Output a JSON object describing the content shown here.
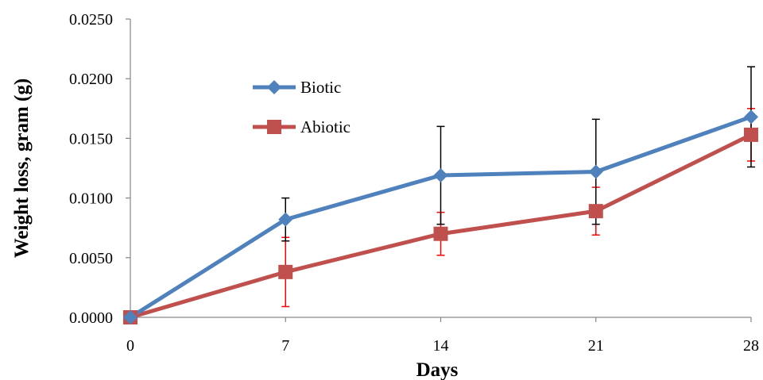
{
  "chart_data": {
    "type": "line",
    "title": "",
    "xlabel": "Days",
    "ylabel": "Weight loss, gram (g)",
    "x": [
      0,
      7,
      14,
      21,
      28
    ],
    "x_tick_labels": [
      "0",
      "7",
      "14",
      "21",
      "28"
    ],
    "ylim": [
      0,
      0.025
    ],
    "y_ticks": [
      0,
      0.005,
      0.01,
      0.015,
      0.02,
      0.025
    ],
    "y_tick_labels": [
      "0.0000",
      "0.0050",
      "0.0100",
      "0.0150",
      "0.0200",
      "0.0250"
    ],
    "grid": false,
    "legend_position": "upper-left-inside",
    "series": [
      {
        "name": "Biotic",
        "color": "#4F81BD",
        "marker": "diamond",
        "values": [
          0.0,
          0.0082,
          0.0119,
          0.0122,
          0.0168
        ],
        "error": [
          0.0,
          0.0018,
          0.0041,
          0.0044,
          0.0042
        ],
        "error_color": "#000000"
      },
      {
        "name": "Abiotic",
        "color": "#C0504D",
        "marker": "square",
        "values": [
          0.0,
          0.0038,
          0.007,
          0.0089,
          0.0153
        ],
        "error": [
          0.0,
          0.0029,
          0.0018,
          0.002,
          0.0022
        ],
        "error_color": "#FF0000"
      }
    ]
  }
}
